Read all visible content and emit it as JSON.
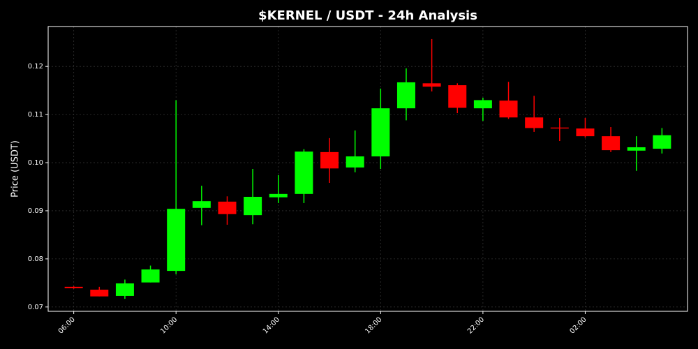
{
  "chart_data": {
    "type": "candlestick",
    "title": "$KERNEL / USDT - 24h Analysis",
    "y_label": "Price (USDT)",
    "categories": [
      "06:00",
      null,
      null,
      null,
      "10:00",
      null,
      null,
      null,
      "14:00",
      null,
      null,
      null,
      "18:00",
      null,
      null,
      null,
      "22:00",
      null,
      null,
      null,
      "02:00",
      null,
      null,
      null
    ],
    "series": [
      {
        "open": [
          0.0742,
          0.0736,
          0.0723,
          0.0751,
          0.0775,
          0.0906,
          0.0919,
          0.0891,
          0.0928,
          0.0935,
          0.1022,
          0.099,
          0.1013,
          0.1113,
          0.1165,
          0.1161,
          0.1113,
          0.1129,
          0.1094,
          0.1073,
          0.1071,
          0.1055,
          0.1025,
          0.1029
        ],
        "high": [
          0.0743,
          0.0742,
          0.0757,
          0.0786,
          0.113,
          0.0952,
          0.093,
          0.0987,
          0.0974,
          0.1028,
          0.1051,
          0.1067,
          0.1154,
          0.1196,
          0.1257,
          0.1165,
          0.1135,
          0.1168,
          0.1139,
          0.1093,
          0.1093,
          0.1074,
          0.1055,
          0.1072
        ],
        "low": [
          0.0738,
          0.0722,
          0.0717,
          0.0751,
          0.0768,
          0.087,
          0.0871,
          0.0872,
          0.0916,
          0.0916,
          0.0958,
          0.098,
          0.0987,
          0.1088,
          0.1148,
          0.1103,
          0.1087,
          0.1091,
          0.1064,
          0.1045,
          0.1052,
          0.1022,
          0.0983,
          0.1019
        ],
        "close": [
          0.0739,
          0.0722,
          0.0749,
          0.0778,
          0.0904,
          0.092,
          0.0893,
          0.0929,
          0.0935,
          0.1023,
          0.0988,
          0.1013,
          0.1113,
          0.1167,
          0.1158,
          0.1114,
          0.113,
          0.1094,
          0.1072,
          0.1071,
          0.1055,
          0.1026,
          0.1032,
          0.1057
        ]
      }
    ],
    "up_color": "#00ff00",
    "down_color": "#ff0000",
    "ylim": [
      0.0691,
      0.1283
    ],
    "yticks": [
      0.07,
      0.08,
      0.09,
      {
        "value": 0.1,
        "label": "0.10"
      },
      0.11,
      0.12
    ],
    "grid": true
  }
}
